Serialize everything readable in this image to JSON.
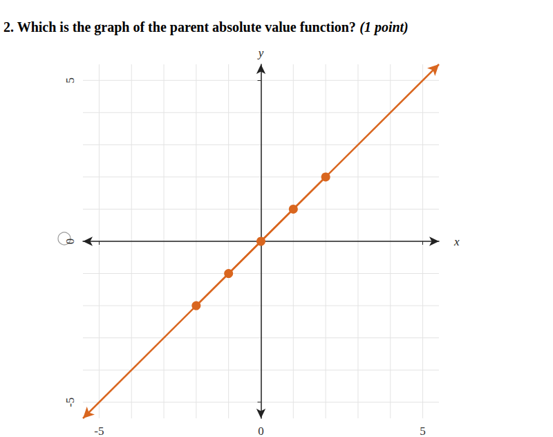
{
  "question": {
    "text": "2. Which is the graph of the parent absolute value function?",
    "points": "(1 point)"
  },
  "chart_data": {
    "type": "line",
    "x_label": "x",
    "y_label": "y",
    "x": [
      -2,
      -1,
      0,
      1,
      2
    ],
    "values": [
      -2,
      -1,
      0,
      1,
      2
    ],
    "line_ends": {
      "x": [
        -5.5,
        5.5
      ],
      "y": [
        -5.5,
        5.5
      ]
    },
    "color": "#d9661f",
    "marker": "circle",
    "line_style": "arrows",
    "xlim": [
      -5.5,
      5.5
    ],
    "ylim": [
      -5.5,
      5.5
    ],
    "xticks": [
      -5,
      0,
      5
    ],
    "yticks": [
      -5,
      0,
      5
    ],
    "grid": true
  }
}
